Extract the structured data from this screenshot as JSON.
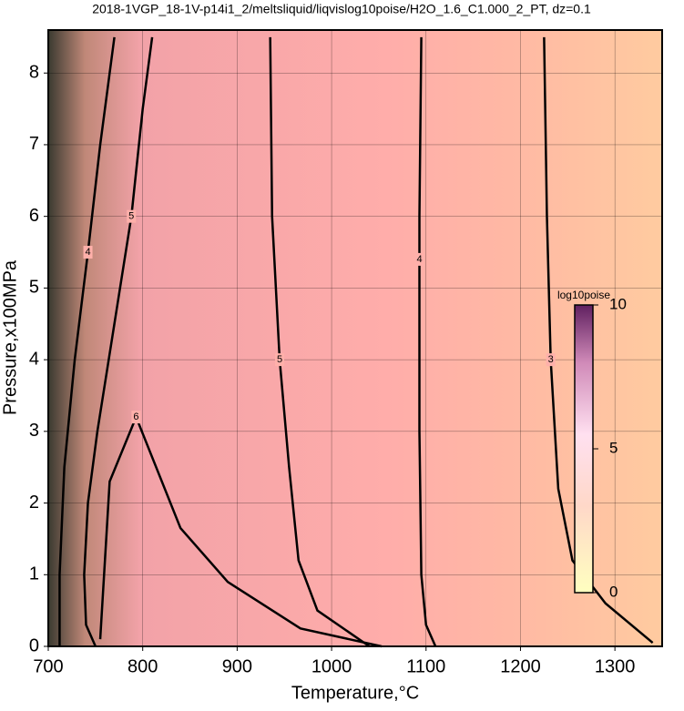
{
  "chart_data": {
    "type": "contour",
    "title": "2018-1VGP_18-1V-p14i1_2/meltsliquid/liqvislog10poise/H2O_1.6_C1.000_2_PT, dz=0.1",
    "x_label": "Temperature,°C",
    "y_label": "Pressure,x100MPa",
    "xlim": [
      700,
      1350
    ],
    "ylim": [
      0,
      8.6
    ],
    "xticks": [
      700,
      800,
      900,
      1000,
      1100,
      1200,
      1300
    ],
    "yticks": [
      0,
      1,
      2,
      3,
      4,
      5,
      6,
      7,
      8
    ],
    "grid": true,
    "contours": [
      {
        "level": 3,
        "x": [
          1225,
          1228,
          1232,
          1240,
          1255,
          1290,
          1340
        ],
        "y": [
          8.5,
          6,
          4,
          2.2,
          1.2,
          0.6,
          0.05
        ]
      },
      {
        "level": 4,
        "x": [
          1095,
          1093,
          1093,
          1093,
          1095,
          1100,
          1110
        ],
        "y": [
          8.5,
          6,
          5.4,
          3,
          1,
          0.3,
          0
        ]
      },
      {
        "level": 5,
        "x": [
          935,
          937,
          945,
          955,
          965,
          985,
          1040
        ],
        "y": [
          8.5,
          6,
          4,
          2.5,
          1.2,
          0.5,
          0
        ]
      },
      {
        "level": 6,
        "x": [
          755,
          765,
          793,
          840,
          890,
          967,
          1053
        ],
        "y": [
          0.1,
          2.3,
          3.2,
          1.65,
          0.9,
          0.25,
          0
        ]
      },
      {
        "level": 5,
        "x": [
          810,
          800,
          788,
          770,
          752,
          742,
          738,
          740,
          750
        ],
        "y": [
          8.5,
          7.5,
          6,
          4.5,
          3,
          2,
          1,
          0.3,
          0
        ]
      },
      {
        "level": 4,
        "x": [
          770,
          755,
          742,
          728,
          717,
          712,
          712
        ],
        "y": [
          8.5,
          7,
          5.5,
          4,
          2.5,
          1,
          0
        ]
      }
    ],
    "colorbar": {
      "label": "log10poise",
      "lim": [
        0,
        10
      ],
      "ticks": [
        0,
        5,
        10
      ]
    }
  }
}
